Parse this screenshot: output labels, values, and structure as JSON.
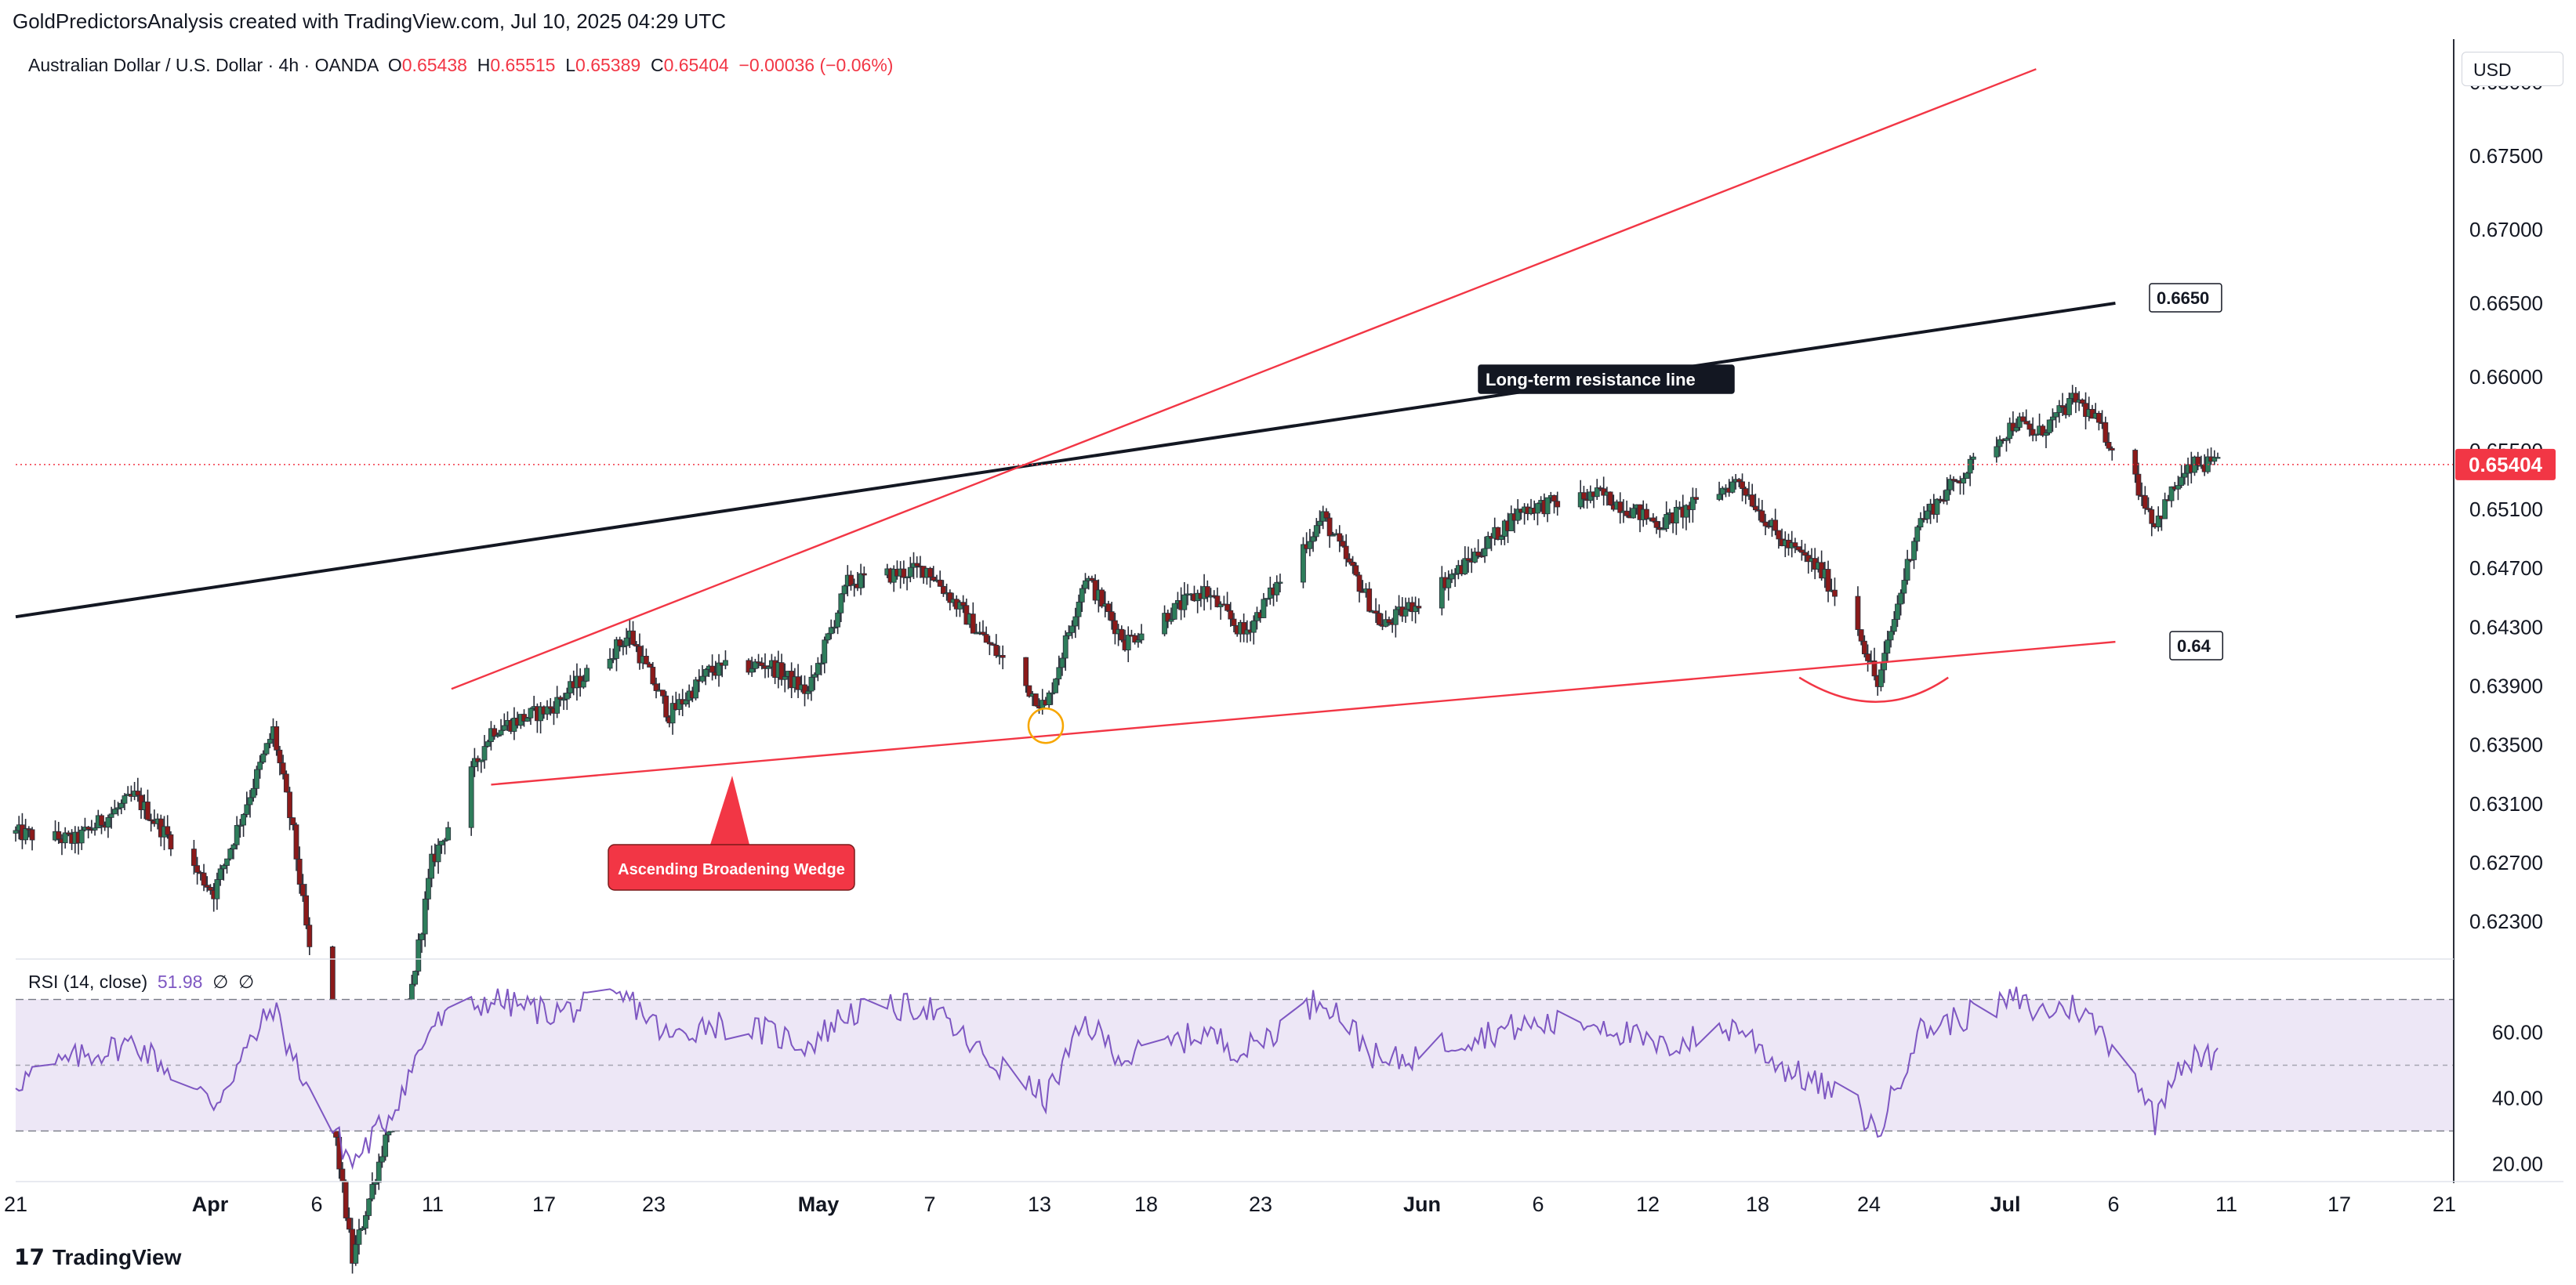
{
  "header": {
    "caption": "GoldPredictorsAnalysis created with TradingView.com, Jul 10, 2025 04:29 UTC",
    "symbol": "Australian Dollar / U.S. Dollar · 4h · OANDA",
    "open_label": "O",
    "open": "0.65438",
    "high_label": "H",
    "high": "0.65515",
    "low_label": "L",
    "low": "0.65389",
    "close_label": "C",
    "close": "0.65404",
    "change": "−0.00036 (−0.06%)"
  },
  "currency": "USD",
  "price_tag": "0.65404",
  "annotations": {
    "resistance_label": "Long-term resistance line",
    "resistance_value": "0.6650",
    "support_value": "0.64",
    "wedge_label": "Ascending Broadening Wedge"
  },
  "rsi": {
    "title": "RSI (14, close)",
    "value": "51.98",
    "ph1": "∅",
    "ph2": "∅"
  },
  "footer": {
    "brand": "TradingView"
  },
  "colors": {
    "up": "#089981",
    "down": "#f23645",
    "candle_up_fill": "#2e7d5b",
    "candle_down_fill": "#8b1a1a",
    "trend_red": "#f23645",
    "resistance": "#131722",
    "rsi_line": "#7e57c2",
    "rsi_band": "#ede7f6"
  },
  "chart_data": [
    {
      "type": "candlestick",
      "title": "Australian Dollar / U.S. Dollar · 4h · OANDA",
      "x_tick_labels": [
        "21",
        "Apr",
        "6",
        "11",
        "17",
        "23",
        "May",
        "7",
        "13",
        "18",
        "23",
        "Jun",
        "6",
        "12",
        "18",
        "24",
        "Jul",
        "6",
        "11",
        "17",
        "21"
      ],
      "y_tick_labels": [
        "0.68000",
        "0.67500",
        "0.67000",
        "0.66500",
        "0.66000",
        "0.65500",
        "0.65100",
        "0.64700",
        "0.64300",
        "0.63900",
        "0.63500",
        "0.63100",
        "0.62700",
        "0.62300"
      ],
      "ylim": [
        0.6204,
        0.6824
      ],
      "current_price": 0.65404,
      "trendlines": [
        {
          "name": "Long-term resistance line",
          "points": [
            [
              "2025-03-21",
              0.6437
            ],
            [
              "2025-07-05",
              0.665
            ]
          ]
        },
        {
          "name": "wedge upper",
          "points": [
            [
              "2025-04-12",
              0.6388
            ],
            [
              "2025-07-01",
              0.6809
            ]
          ]
        },
        {
          "name": "wedge lower",
          "points": [
            [
              "2025-04-14",
              0.6323
            ],
            [
              "2025-07-05",
              0.642
            ]
          ]
        }
      ],
      "ohlc_path": [
        [
          "2025-03-21",
          0.629
        ],
        [
          "2025-03-24",
          0.6285
        ],
        [
          "2025-03-27",
          0.6315
        ],
        [
          "2025-03-31",
          0.625
        ],
        [
          "2025-04-03",
          0.636
        ],
        [
          "2025-04-04",
          0.629
        ],
        [
          "2025-04-07",
          0.6
        ],
        [
          "2025-04-09",
          0.61
        ],
        [
          "2025-04-11",
          0.627
        ],
        [
          "2025-04-14",
          0.636
        ],
        [
          "2025-04-17",
          0.6375
        ],
        [
          "2025-04-21",
          0.6425
        ],
        [
          "2025-04-23",
          0.637
        ],
        [
          "2025-04-25",
          0.64
        ],
        [
          "2025-04-28",
          0.6405
        ],
        [
          "2025-04-30",
          0.6385
        ],
        [
          "2025-05-02",
          0.646
        ],
        [
          "2025-05-06",
          0.647
        ],
        [
          "2025-05-09",
          0.642
        ],
        [
          "2025-05-12",
          0.6375
        ],
        [
          "2025-05-14",
          0.6465
        ],
        [
          "2025-05-16",
          0.642
        ],
        [
          "2025-05-20",
          0.6455
        ],
        [
          "2025-05-22",
          0.6425
        ],
        [
          "2025-05-26",
          0.6505
        ],
        [
          "2025-05-29",
          0.643
        ],
        [
          "2025-06-02",
          0.647
        ],
        [
          "2025-06-05",
          0.651
        ],
        [
          "2025-06-09",
          0.652
        ],
        [
          "2025-06-12",
          0.65
        ],
        [
          "2025-06-16",
          0.653
        ],
        [
          "2025-06-18",
          0.649
        ],
        [
          "2025-06-20",
          0.647
        ],
        [
          "2025-06-22",
          0.643
        ],
        [
          "2025-06-23",
          0.639
        ],
        [
          "2025-06-25",
          0.65
        ],
        [
          "2025-06-27",
          0.653
        ],
        [
          "2025-06-30",
          0.657
        ],
        [
          "2025-07-01",
          0.656
        ],
        [
          "2025-07-03",
          0.6585
        ],
        [
          "2025-07-04",
          0.657
        ],
        [
          "2025-07-06",
          0.653
        ],
        [
          "2025-07-07",
          0.65
        ],
        [
          "2025-07-08",
          0.6525
        ],
        [
          "2025-07-09",
          0.654
        ],
        [
          "2025-07-10",
          0.654
        ]
      ]
    },
    {
      "type": "line",
      "title": "RSI (14, close)",
      "y_tick_labels": [
        "60.00",
        "40.00",
        "20.00"
      ],
      "ylim": [
        17,
        78
      ],
      "bands": [
        70,
        50,
        30
      ],
      "last_value": 51.98,
      "series": [
        {
          "name": "RSI (14, close)",
          "values": [
            [
              "2025-03-21",
              45
            ],
            [
              "2025-03-24",
              52
            ],
            [
              "2025-03-27",
              57
            ],
            [
              "2025-03-31",
              38
            ],
            [
              "2025-04-03",
              68
            ],
            [
              "2025-04-04",
              52
            ],
            [
              "2025-04-07",
              20
            ],
            [
              "2025-04-09",
              36
            ],
            [
              "2025-04-11",
              62
            ],
            [
              "2025-04-14",
              70
            ],
            [
              "2025-04-17",
              66
            ],
            [
              "2025-04-21",
              70
            ],
            [
              "2025-04-23",
              58
            ],
            [
              "2025-04-25",
              63
            ],
            [
              "2025-04-28",
              60
            ],
            [
              "2025-04-30",
              56
            ],
            [
              "2025-05-02",
              66
            ],
            [
              "2025-05-06",
              68
            ],
            [
              "2025-05-09",
              52
            ],
            [
              "2025-05-12",
              40
            ],
            [
              "2025-05-14",
              63
            ],
            [
              "2025-05-16",
              52
            ],
            [
              "2025-05-20",
              60
            ],
            [
              "2025-05-22",
              54
            ],
            [
              "2025-05-26",
              71
            ],
            [
              "2025-05-29",
              50
            ],
            [
              "2025-06-02",
              58
            ],
            [
              "2025-06-05",
              62
            ],
            [
              "2025-06-09",
              63
            ],
            [
              "2025-06-12",
              55
            ],
            [
              "2025-06-16",
              62
            ],
            [
              "2025-06-18",
              50
            ],
            [
              "2025-06-20",
              44
            ],
            [
              "2025-06-22",
              37
            ],
            [
              "2025-06-23",
              29
            ],
            [
              "2025-06-25",
              60
            ],
            [
              "2025-06-27",
              64
            ],
            [
              "2025-06-30",
              70
            ],
            [
              "2025-07-01",
              66
            ],
            [
              "2025-07-03",
              68
            ],
            [
              "2025-07-04",
              62
            ],
            [
              "2025-07-06",
              48
            ],
            [
              "2025-07-07",
              33
            ],
            [
              "2025-07-08",
              50
            ],
            [
              "2025-07-09",
              52
            ],
            [
              "2025-07-10",
              52
            ]
          ]
        }
      ]
    }
  ]
}
